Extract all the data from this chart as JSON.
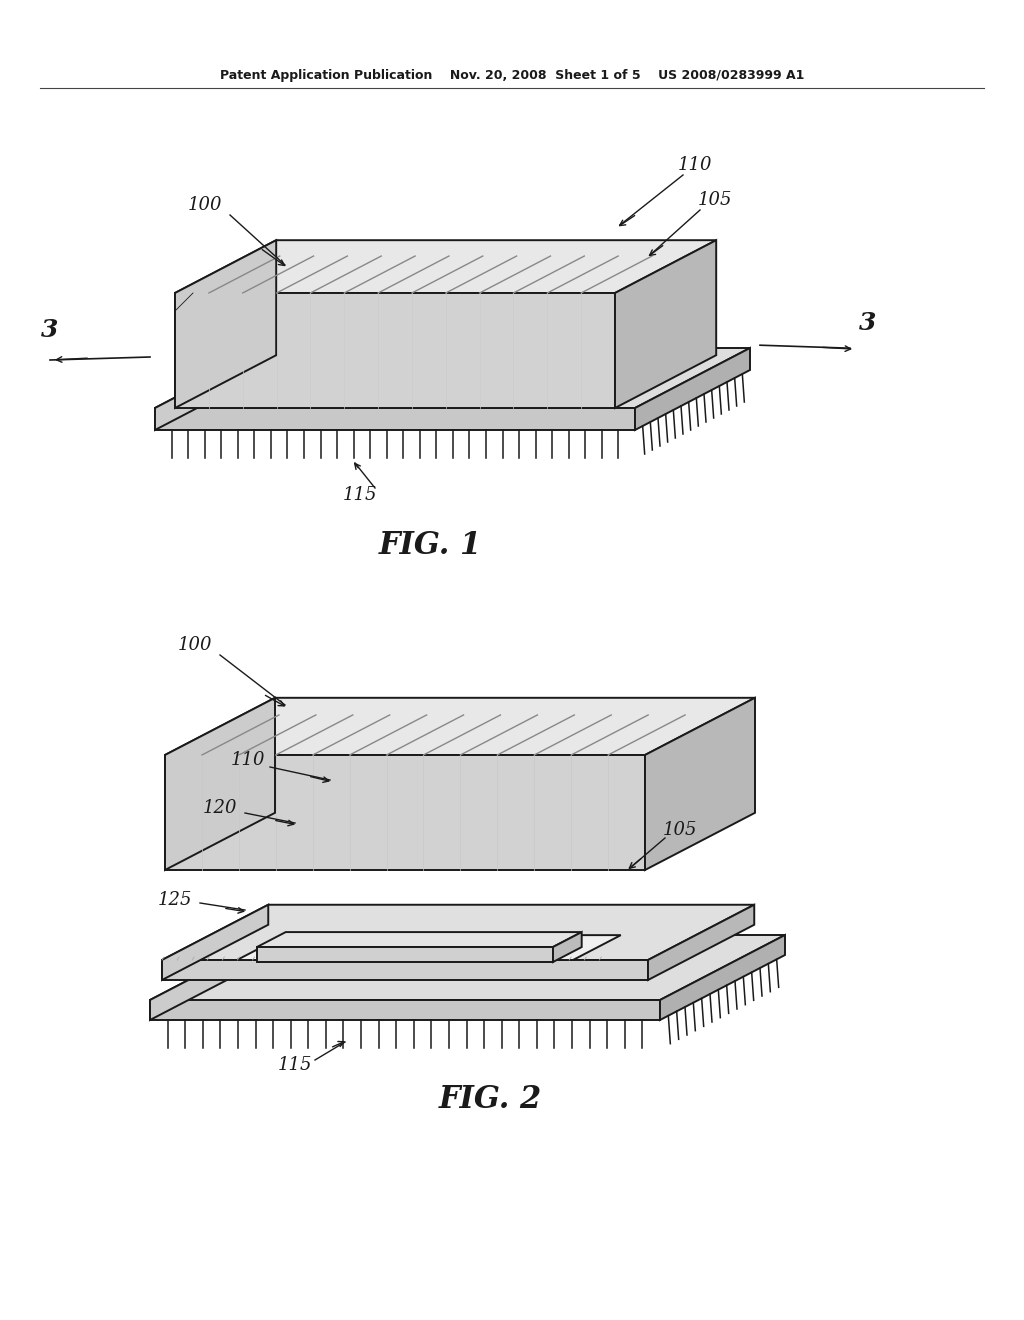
{
  "bg_color": "#ffffff",
  "lc": "#1a1a1a",
  "header": "Patent Application Publication    Nov. 20, 2008  Sheet 1 of 5    US 2008/0283999 A1",
  "fig1_label": "FIG. 1",
  "fig2_label": "FIG. 2",
  "lw_main": 1.4,
  "lw_thin": 0.8,
  "lw_pin": 1.0,
  "stripe_color": "#888888",
  "face_top": "#e8e8e8",
  "face_front": "#d2d2d2",
  "face_right": "#b8b8b8",
  "face_base_top": "#dedede",
  "face_base_front": "#c8c8c8",
  "face_base_right": "#b0b0b0"
}
